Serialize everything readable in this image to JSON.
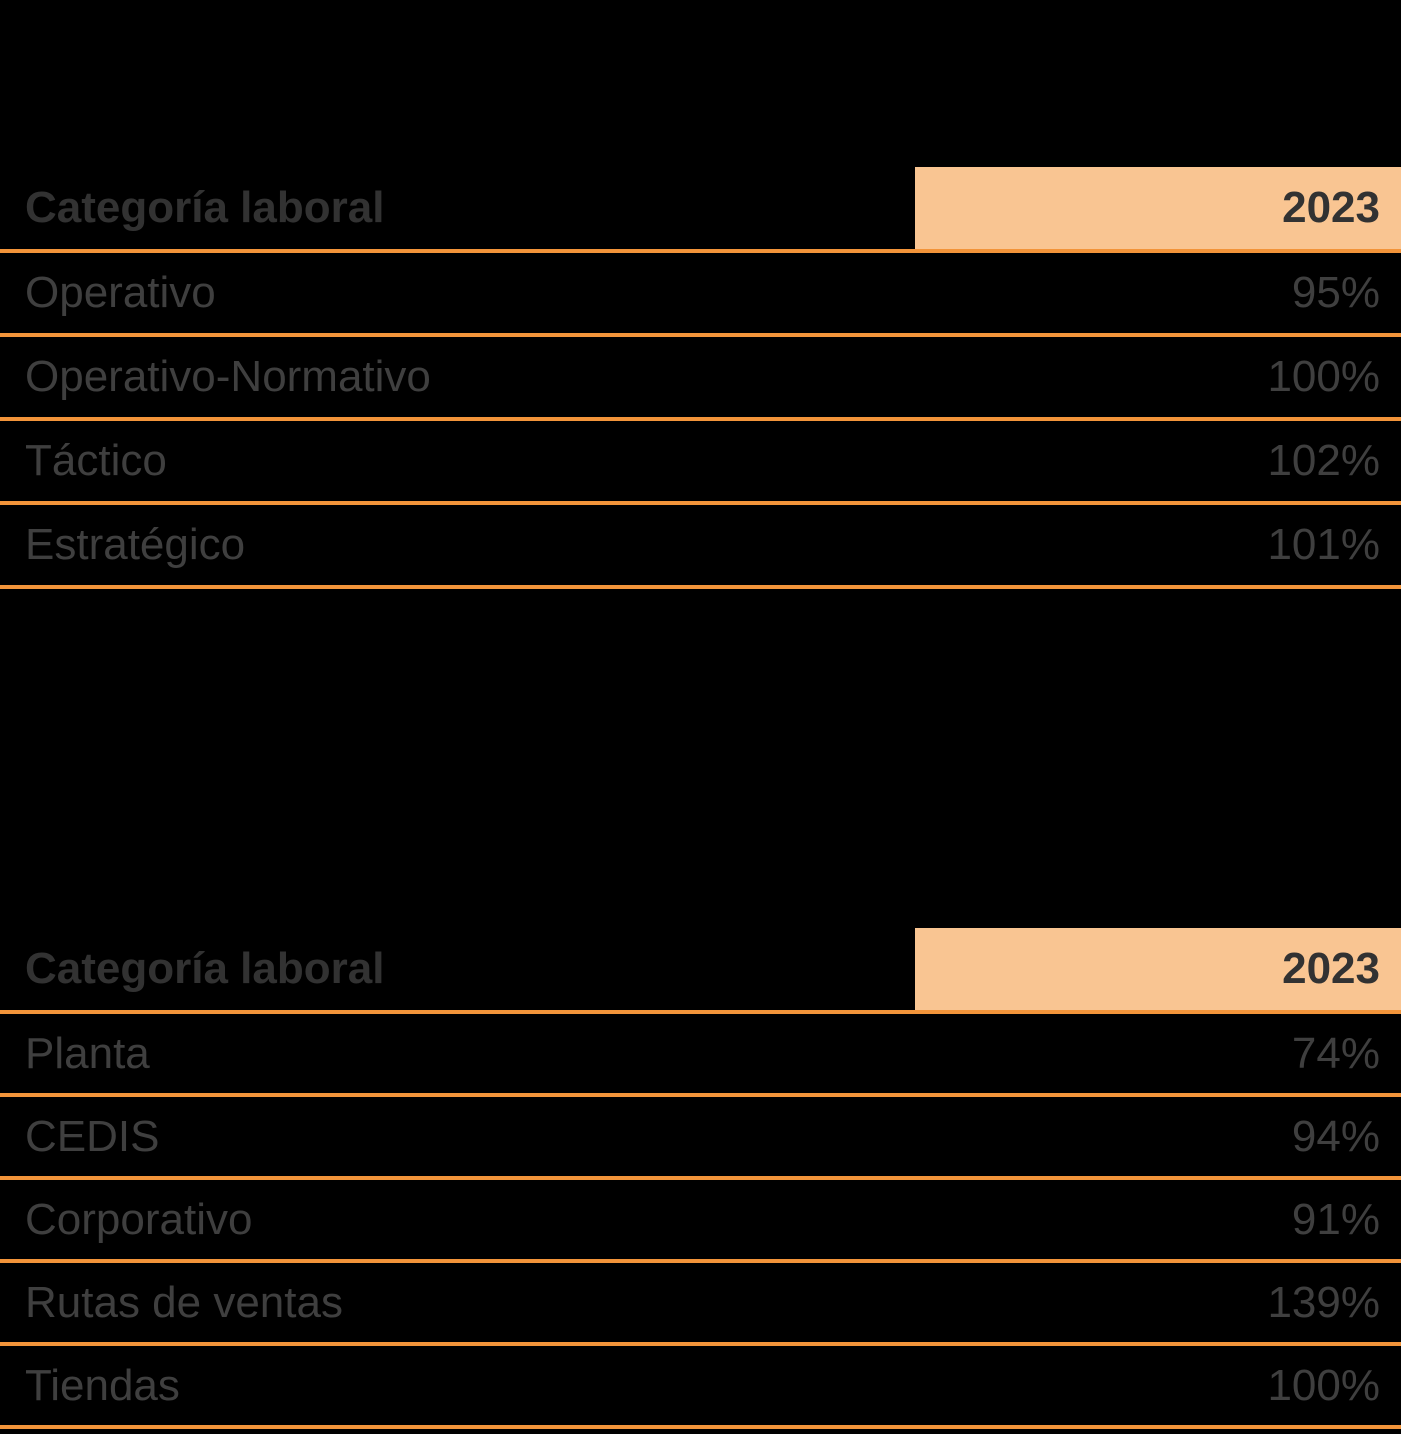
{
  "colors": {
    "background": "#000000",
    "header_fill": "#F9C592",
    "divider_orange": "#F2943A",
    "header_text": "#323232",
    "row_text": "#3F3F3F"
  },
  "tables": [
    {
      "header": {
        "label": "Categoría laboral",
        "value": "2023"
      },
      "rows": [
        {
          "label": "Operativo",
          "value": "95%"
        },
        {
          "label": "Operativo-Normativo",
          "value": "100%"
        },
        {
          "label": "Táctico",
          "value": "102%"
        },
        {
          "label": "Estratégico",
          "value": "101%"
        }
      ]
    },
    {
      "header": {
        "label": "Categoría laboral",
        "value": "2023"
      },
      "rows": [
        {
          "label": "Planta",
          "value": "74%"
        },
        {
          "label": "CEDIS",
          "value": "94%"
        },
        {
          "label": "Corporativo",
          "value": "91%"
        },
        {
          "label": "Rutas de ventas",
          "value": "139%"
        },
        {
          "label": "Tiendas",
          "value": "100%"
        }
      ]
    }
  ]
}
